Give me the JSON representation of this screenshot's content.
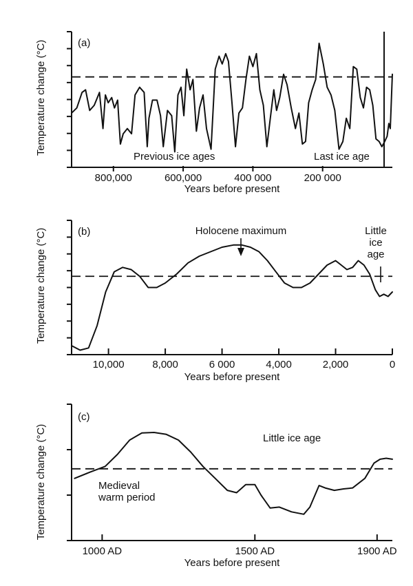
{
  "chart_data": [
    {
      "type": "line",
      "panel_label": "(a)",
      "ylabel": "Temperature change (°C)",
      "xlabel": "Years before present",
      "x_ticks": [
        "800,000",
        "600,000",
        "400 000",
        "200 000"
      ],
      "x_tick_values": [
        800000,
        600000,
        400000,
        200000
      ],
      "xlim": [
        920000,
        0
      ],
      "annotations": [
        "Previous ice ages",
        "Last ice age"
      ],
      "reference_line": "dashed",
      "series": [
        {
          "x": [
            920000,
            905000,
            890000,
            880000,
            868000,
            855000,
            840000,
            830000,
            823000,
            815000,
            805000,
            797000,
            788000,
            780000,
            772000,
            760000,
            748000,
            738000,
            725000,
            712000,
            703000,
            698000,
            688000,
            675000,
            665000,
            657000,
            645000,
            633000,
            624000,
            615000,
            606000,
            598000,
            590000,
            580000,
            572000,
            562000,
            553000,
            543000,
            533000,
            520000,
            508000,
            497000,
            488000,
            478000,
            470000,
            460000,
            450000,
            440000,
            430000,
            420000,
            410000,
            400000,
            390000,
            380000,
            370000,
            360000,
            350000,
            340000,
            332000,
            323000,
            312000,
            302000,
            290000,
            278000,
            268000,
            258000,
            249000,
            240000,
            230000,
            220000,
            210000,
            198000,
            187000,
            176000,
            165000,
            153000,
            142000,
            132000,
            122000,
            112000,
            102000,
            92000,
            83000,
            74000,
            65000,
            56000,
            47000,
            38000,
            30000,
            22000,
            15000,
            10000,
            6000,
            0
          ],
          "y": [
            -1.4,
            -1.2,
            -0.6,
            -0.5,
            -1.3,
            -1.1,
            -0.6,
            -2.0,
            -0.7,
            -1.0,
            -0.8,
            -1.2,
            -0.9,
            -2.6,
            -2.2,
            -2.0,
            -2.2,
            -0.7,
            -0.4,
            -0.6,
            -2.7,
            -1.6,
            -0.9,
            -0.9,
            -1.5,
            -2.7,
            -1.3,
            -1.5,
            -2.9,
            -0.7,
            -0.4,
            -1.5,
            0.3,
            -0.5,
            -0.1,
            -2.1,
            -1.2,
            -0.7,
            -2.0,
            -2.8,
            0.3,
            0.8,
            0.5,
            0.9,
            0.6,
            -1.0,
            -2.7,
            -1.4,
            -1.2,
            -0.1,
            0.8,
            0.4,
            0.9,
            -0.5,
            -1.1,
            -2.7,
            -1.6,
            -0.5,
            -1.3,
            -0.8,
            0.1,
            -0.3,
            -1.2,
            -2.0,
            -1.4,
            -2.6,
            -2.5,
            -1.0,
            -0.5,
            -0.1,
            1.3,
            0.5,
            -0.4,
            -0.7,
            -1.3,
            -2.8,
            -2.5,
            -1.6,
            -2.0,
            0.4,
            0.3,
            -0.8,
            -1.2,
            -0.4,
            -0.5,
            -1.1,
            -2.4,
            -2.5,
            -2.7,
            -2.5,
            -2.3,
            -1.8,
            -2.0,
            0.1
          ]
        }
      ]
    },
    {
      "type": "line",
      "panel_label": "(b)",
      "ylabel": "Temperature change (°C)",
      "xlabel": "Years before present",
      "x_ticks": [
        "10,000",
        "8,000",
        "6 000",
        "4,000",
        "2,000",
        "0"
      ],
      "x_tick_values": [
        10000,
        8000,
        6000,
        4000,
        2000,
        0
      ],
      "xlim": [
        11300,
        0
      ],
      "annotations": [
        "Holocene maximum",
        "Little ice age"
      ],
      "reference_line": "dashed",
      "series": [
        {
          "x": [
            11300,
            11000,
            10700,
            10400,
            10100,
            9800,
            9500,
            9200,
            8900,
            8600,
            8300,
            8000,
            7600,
            7200,
            6800,
            6400,
            6000,
            5600,
            5300,
            5000,
            4700,
            4400,
            4100,
            3800,
            3500,
            3200,
            2900,
            2600,
            2300,
            2000,
            1800,
            1600,
            1400,
            1200,
            1000,
            800,
            600,
            450,
            300,
            150,
            0
          ],
          "y": [
            -3.1,
            -3.3,
            -3.2,
            -2.2,
            -0.7,
            0.2,
            0.4,
            0.3,
            0.0,
            -0.5,
            -0.5,
            -0.3,
            0.1,
            0.6,
            0.9,
            1.1,
            1.3,
            1.4,
            1.4,
            1.3,
            1.1,
            0.7,
            0.2,
            -0.3,
            -0.5,
            -0.5,
            -0.3,
            0.1,
            0.5,
            0.7,
            0.5,
            0.3,
            0.4,
            0.7,
            0.5,
            0.1,
            -0.6,
            -0.9,
            -0.8,
            -0.9,
            -0.7
          ]
        }
      ]
    },
    {
      "type": "line",
      "panel_label": "(c)",
      "ylabel": "Temperature change (°C)",
      "xlabel": "Years before present",
      "x_ticks": [
        "1000 AD",
        "1500 AD",
        "1900 AD"
      ],
      "x_tick_values": [
        1000,
        1500,
        1900
      ],
      "xlim": [
        900,
        1950
      ],
      "annotations": [
        "Little ice age",
        "Medieval warm period"
      ],
      "reference_line": "dashed",
      "series": [
        {
          "x": [
            910,
            960,
            1010,
            1050,
            1090,
            1130,
            1170,
            1210,
            1250,
            1290,
            1330,
            1370,
            1410,
            1440,
            1470,
            1500,
            1520,
            1550,
            1580,
            1620,
            1660,
            1680,
            1710,
            1730,
            1760,
            1790,
            1820,
            1860,
            1890,
            1910,
            1930,
            1950
          ],
          "y": [
            -0.2,
            -0.07,
            0.05,
            0.3,
            0.6,
            0.75,
            0.76,
            0.72,
            0.6,
            0.35,
            0.05,
            -0.2,
            -0.45,
            -0.5,
            -0.33,
            -0.33,
            -0.55,
            -0.82,
            -0.8,
            -0.9,
            -0.95,
            -0.8,
            -0.35,
            -0.4,
            -0.45,
            -0.42,
            -0.4,
            -0.2,
            0.12,
            0.2,
            0.22,
            0.2
          ]
        }
      ]
    }
  ]
}
